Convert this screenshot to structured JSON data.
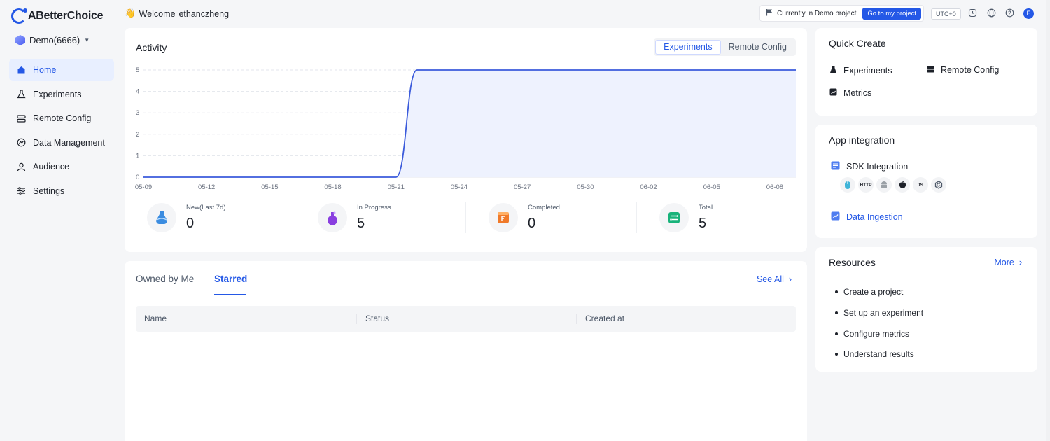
{
  "brand": {
    "name": "ABetterChoice"
  },
  "project": {
    "name": "Demo(6666)"
  },
  "sidebar": {
    "items": [
      {
        "label": "Home",
        "icon": "home-icon",
        "active": true
      },
      {
        "label": "Experiments",
        "icon": "flask-icon"
      },
      {
        "label": "Remote Config",
        "icon": "config-icon"
      },
      {
        "label": "Data Management",
        "icon": "data-management-icon"
      },
      {
        "label": "Audience",
        "icon": "user-icon"
      },
      {
        "label": "Settings",
        "icon": "sliders-icon"
      }
    ]
  },
  "header": {
    "welcome_emoji": "👋",
    "welcome": "Welcome",
    "user": "ethanczheng",
    "demo_text": "Currently in Demo project",
    "go_button": "Go to my project",
    "timezone": "UTC+0",
    "avatar_letter": "E"
  },
  "activity": {
    "title": "Activity",
    "tabs": [
      "Experiments",
      "Remote Config"
    ],
    "active_tab": "Experiments",
    "stats": [
      {
        "label": "New(Last 7d)",
        "value": "0",
        "icon": "new-flask-icon",
        "color": "#3b8ce0"
      },
      {
        "label": "In Progress",
        "value": "5",
        "icon": "in-progress-flask-icon",
        "color": "#8a3fe0"
      },
      {
        "label": "Completed",
        "value": "0",
        "icon": "completed-flag-icon",
        "color": "#f07a2a"
      },
      {
        "label": "Total",
        "value": "5",
        "icon": "total-list-icon",
        "color": "#18b37a"
      }
    ]
  },
  "chart_data": {
    "type": "area",
    "x": [
      "05-09",
      "05-10",
      "05-11",
      "05-12",
      "05-13",
      "05-14",
      "05-15",
      "05-16",
      "05-17",
      "05-18",
      "05-19",
      "05-20",
      "05-21",
      "05-22",
      "05-23",
      "05-24",
      "05-25",
      "05-26",
      "05-27",
      "05-28",
      "05-29",
      "05-30",
      "05-31",
      "06-01",
      "06-02",
      "06-03",
      "06-04",
      "06-05",
      "06-06",
      "06-07",
      "06-08",
      "06-09"
    ],
    "xticks": [
      "05-09",
      "05-12",
      "05-15",
      "05-18",
      "05-21",
      "05-24",
      "05-27",
      "05-30",
      "06-02",
      "06-05",
      "06-08"
    ],
    "values": [
      0,
      0,
      0,
      0,
      0,
      0,
      0,
      0,
      0,
      0,
      0,
      0,
      0,
      5,
      5,
      5,
      5,
      5,
      5,
      5,
      5,
      5,
      5,
      5,
      5,
      5,
      5,
      5,
      5,
      5,
      5,
      5
    ],
    "yticks": [
      "0",
      "1",
      "2",
      "3",
      "4",
      "5"
    ],
    "ylim": [
      0,
      5
    ],
    "grid": true,
    "color": "#3b5bdb"
  },
  "lists": {
    "tabs": [
      "Owned by Me",
      "Starred"
    ],
    "active_tab": "Starred",
    "see_all": "See All",
    "columns": [
      "Name",
      "Status",
      "Created at"
    ]
  },
  "quick_create": {
    "title": "Quick Create",
    "items": [
      {
        "label": "Experiments",
        "icon": "flask-icon"
      },
      {
        "label": "Remote Config",
        "icon": "config-icon"
      },
      {
        "label": "Metrics",
        "icon": "chart-icon"
      }
    ]
  },
  "app_integration": {
    "title": "App integration",
    "sdk_label": "SDK Integration",
    "sdk_icons": [
      "mouse-icon",
      "http-icon",
      "android-icon",
      "apple-icon",
      "js-icon",
      "go-icon"
    ],
    "http_text": "HTTP",
    "js_text": "JS",
    "data_ingestion": "Data Ingestion"
  },
  "resources": {
    "title": "Resources",
    "more": "More",
    "items": [
      "Create a project",
      "Set up an experiment",
      "Configure metrics",
      "Understand results"
    ]
  }
}
